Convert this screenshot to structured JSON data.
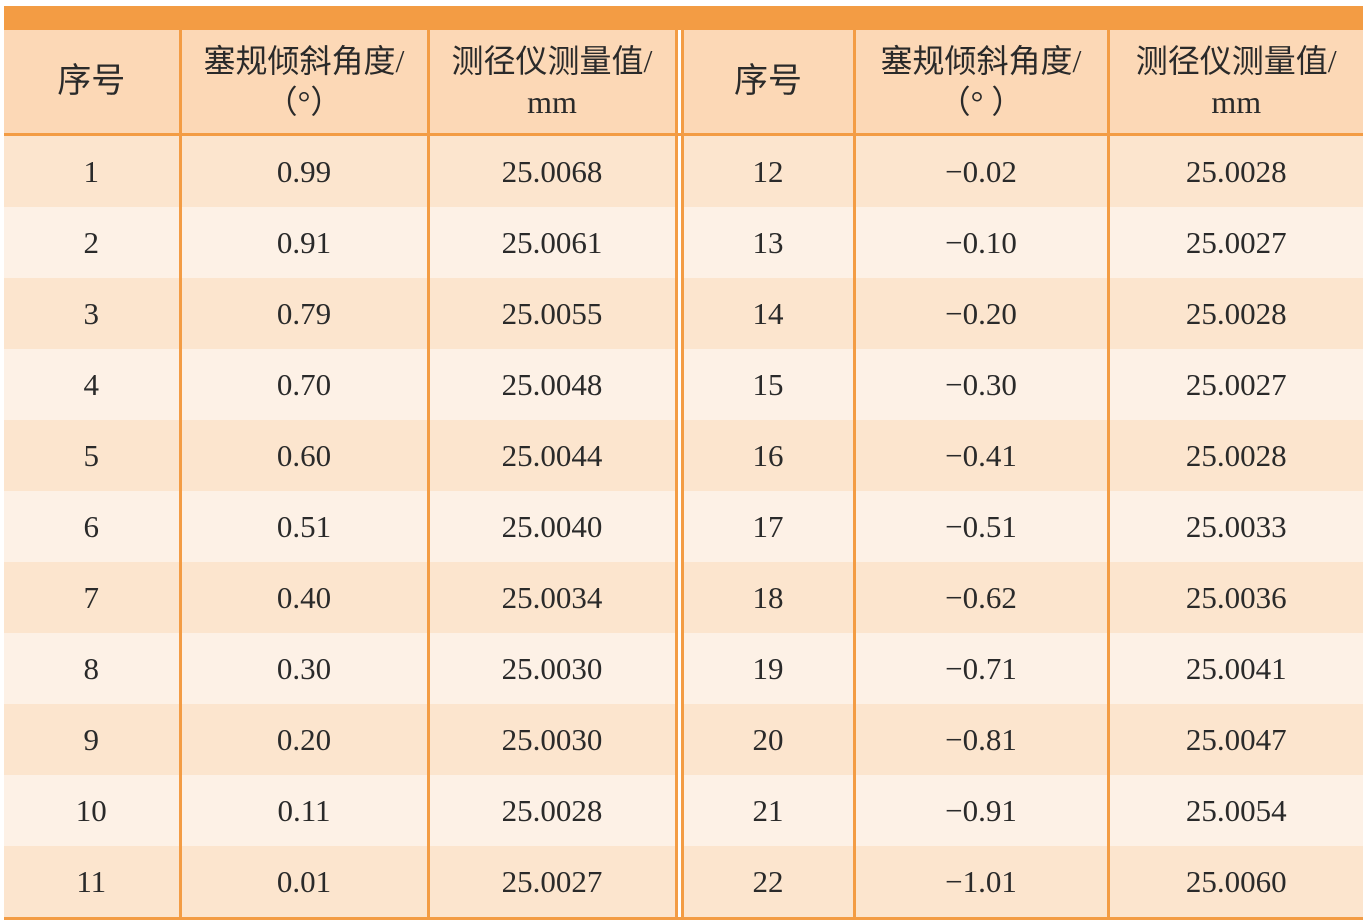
{
  "accent_color": "#f39c44",
  "header": {
    "left": {
      "seq": "序号",
      "angle_line1": "塞规倾斜角度/",
      "angle_line2": "（°）",
      "value_line1": "测径仪测量值/",
      "value_line2": "mm"
    },
    "right": {
      "seq": "序号",
      "angle_line1": "塞规倾斜角度/",
      "angle_line2": "（°   ）",
      "value_line1": "测径仪测量值/",
      "value_line2": "mm"
    }
  },
  "rows": [
    {
      "l_seq": "1",
      "l_angle": "0.99",
      "l_value": "25.0068",
      "r_seq": "12",
      "r_angle": "−0.02",
      "r_value": "25.0028"
    },
    {
      "l_seq": "2",
      "l_angle": "0.91",
      "l_value": "25.0061",
      "r_seq": "13",
      "r_angle": "−0.10",
      "r_value": "25.0027"
    },
    {
      "l_seq": "3",
      "l_angle": "0.79",
      "l_value": "25.0055",
      "r_seq": "14",
      "r_angle": "−0.20",
      "r_value": "25.0028"
    },
    {
      "l_seq": "4",
      "l_angle": "0.70",
      "l_value": "25.0048",
      "r_seq": "15",
      "r_angle": "−0.30",
      "r_value": "25.0027"
    },
    {
      "l_seq": "5",
      "l_angle": "0.60",
      "l_value": "25.0044",
      "r_seq": "16",
      "r_angle": "−0.41",
      "r_value": "25.0028"
    },
    {
      "l_seq": "6",
      "l_angle": "0.51",
      "l_value": "25.0040",
      "r_seq": "17",
      "r_angle": "−0.51",
      "r_value": "25.0033"
    },
    {
      "l_seq": "7",
      "l_angle": "0.40",
      "l_value": "25.0034",
      "r_seq": "18",
      "r_angle": "−0.62",
      "r_value": "25.0036"
    },
    {
      "l_seq": "8",
      "l_angle": "0.30",
      "l_value": "25.0030",
      "r_seq": "19",
      "r_angle": "−0.71",
      "r_value": "25.0041"
    },
    {
      "l_seq": "9",
      "l_angle": "0.20",
      "l_value": "25.0030",
      "r_seq": "20",
      "r_angle": "−0.81",
      "r_value": "25.0047"
    },
    {
      "l_seq": "10",
      "l_angle": "0.11",
      "l_value": "25.0028",
      "r_seq": "21",
      "r_angle": "−0.91",
      "r_value": "25.0054"
    },
    {
      "l_seq": "11",
      "l_angle": "0.01",
      "l_value": "25.0027",
      "r_seq": "22",
      "r_angle": "−1.01",
      "r_value": "25.0060"
    }
  ]
}
